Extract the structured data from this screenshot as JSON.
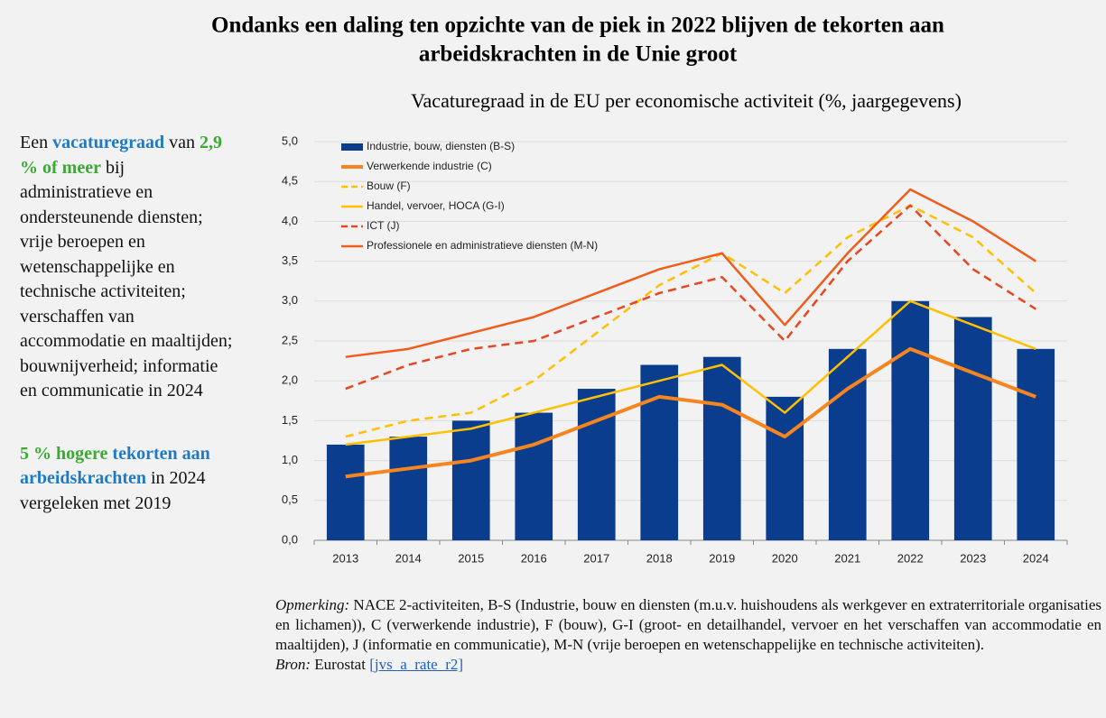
{
  "chart_data": {
    "type": "combo",
    "title": [
      "Ondanks een daling ten opzichte van de piek in 2022 blijven de tekorten aan",
      "arbeidskrachten in de Unie groot"
    ],
    "subtitle": "Vacaturegraad in de EU per economische activiteit (%, jaargegevens)",
    "categories": [
      "2013",
      "2014",
      "2015",
      "2016",
      "2017",
      "2018",
      "2019",
      "2020",
      "2021",
      "2022",
      "2023",
      "2024"
    ],
    "series": [
      {
        "name": "Industrie, bouw, diensten (B-S)",
        "style": "bar",
        "color": "#0b3d8f",
        "values": [
          1.2,
          1.3,
          1.5,
          1.6,
          1.9,
          2.2,
          2.3,
          1.8,
          2.4,
          3.0,
          2.8,
          2.4
        ]
      },
      {
        "name": "Verwerkende industrie (C)",
        "style": "thick",
        "color": "#f5851f",
        "values": [
          0.8,
          0.9,
          1.0,
          1.2,
          1.5,
          1.8,
          1.7,
          1.3,
          1.9,
          2.4,
          2.1,
          1.8
        ]
      },
      {
        "name": "Bouw (F)",
        "style": "dashed",
        "color": "#ffc000",
        "values": [
          1.3,
          1.5,
          1.6,
          2.0,
          2.6,
          3.2,
          3.6,
          3.1,
          3.8,
          4.2,
          3.8,
          3.1
        ]
      },
      {
        "name": "Handel, vervoer, HOCA (G-I)",
        "style": "solid",
        "color": "#ffc000",
        "values": [
          1.2,
          1.3,
          1.4,
          1.6,
          1.8,
          2.0,
          2.2,
          1.6,
          2.3,
          3.0,
          2.7,
          2.4
        ]
      },
      {
        "name": "ICT (J)",
        "style": "dashed",
        "color": "#e8461e",
        "values": [
          1.9,
          2.2,
          2.4,
          2.5,
          2.8,
          3.1,
          3.3,
          2.5,
          3.5,
          4.2,
          3.4,
          2.9
        ]
      },
      {
        "name": "Professionele en administratieve diensten (M-N)",
        "style": "solid",
        "color": "#f25c1b",
        "values": [
          2.3,
          2.4,
          2.6,
          2.8,
          3.1,
          3.4,
          3.6,
          2.7,
          3.6,
          4.4,
          4.0,
          3.5
        ]
      }
    ],
    "ylim": [
      0,
      5
    ],
    "yticks": [
      {
        "value": 0,
        "label": "0,0"
      },
      {
        "value": 0.5,
        "label": "0,5"
      },
      {
        "value": 1,
        "label": "1,0"
      },
      {
        "value": 1.5,
        "label": "1,5"
      },
      {
        "value": 2,
        "label": "2,0"
      },
      {
        "value": 2.5,
        "label": "2,5"
      },
      {
        "value": 3,
        "label": "3,0"
      },
      {
        "value": 3.5,
        "label": "3,5"
      },
      {
        "value": 4,
        "label": "4,0"
      },
      {
        "value": 4.5,
        "label": "4,5"
      },
      {
        "value": 5,
        "label": "5,0"
      }
    ],
    "grid": true,
    "legend": "top-left"
  },
  "sidebar": {
    "paragraphs": [
      [
        {
          "text": "Een",
          "style": "plain"
        },
        {
          "text": "vacaturegraad",
          "style": "blue"
        },
        {
          "text": "van",
          "style": "plain"
        },
        {
          "text": "2,9 % of meer",
          "style": "green"
        },
        {
          "text": "bij administratieve en ondersteunende diensten; vrije beroepen en wetenschappelijke en technische activiteiten; verschaffen van accommodatie en maaltijden; bouwnijverheid; informatie en communicatie in 2024",
          "style": "plain"
        }
      ],
      [
        {
          "text": "5 % hogere",
          "style": "green"
        },
        {
          "text": "tekorten aan arbeidskrachten",
          "style": "blue"
        },
        {
          "text": "in 2024 vergeleken met 2019",
          "style": "plain"
        }
      ]
    ]
  },
  "note": {
    "label": "Opmerking:",
    "text": "NACE 2-activiteiten, B-S (Industrie, bouw en diensten (m.u.v. huishoudens als werkgever en extraterritoriale organisaties en lichamen)), C (verwerkende industrie), F (bouw), G-I (groot- en detailhandel, vervoer en het verschaffen van accommodatie en maaltijden), J (informatie en communicatie), M-N (vrije beroepen en wetenschappelijke en technische activiteiten).",
    "source_label": "Bron:",
    "source": "Eurostat",
    "link": "[jvs_a_rate_r2]"
  }
}
